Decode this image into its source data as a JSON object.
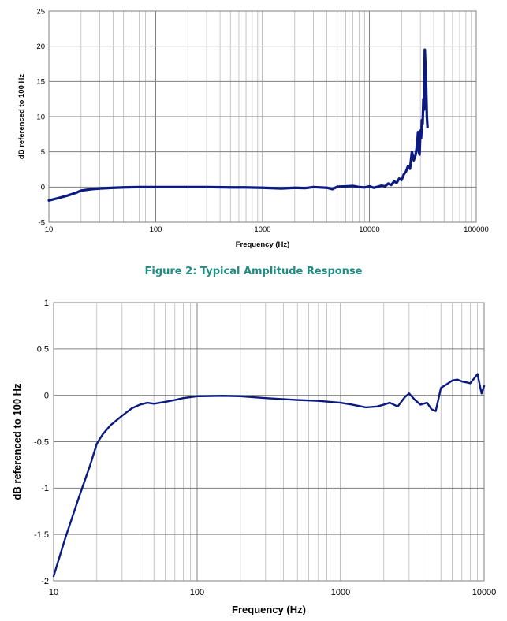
{
  "caption": "Figure 2:  Typical Amplitude Response",
  "colors": {
    "line": "#0a1a80",
    "grid_major": "#808080",
    "grid_minor": "#b0b0b0",
    "caption": "#1f8c84"
  },
  "chart_data": [
    {
      "type": "line",
      "title": "",
      "xlabel": "Frequency (Hz)",
      "ylabel": "dB referenced to 100 Hz",
      "xscale": "log",
      "xlim": [
        10,
        100000
      ],
      "ylim": [
        -5,
        25
      ],
      "x_ticks": [
        "10",
        "100",
        "1000",
        "10000",
        "100000"
      ],
      "y_ticks": [
        "25",
        "20",
        "15",
        "10",
        "5",
        "0",
        "-5"
      ],
      "grid": true,
      "legend": "none",
      "series": [
        {
          "x": [
            10,
            12,
            15,
            18,
            20,
            25,
            30,
            40,
            50,
            70,
            100,
            200,
            300,
            500,
            700,
            1000,
            1500,
            2000,
            2500,
            3000,
            4000,
            4500,
            5000,
            6000,
            7000,
            8000,
            9000,
            10000,
            11000,
            12000,
            13000,
            14000,
            15000,
            16000,
            17000,
            18000,
            19000,
            20000,
            21000,
            22000,
            23000,
            24000,
            25000,
            26000,
            27000,
            28000,
            28500,
            29000,
            29500,
            30000,
            30500,
            31000,
            31500,
            32000,
            32500,
            33000,
            33500,
            34000,
            34500,
            35000
          ],
          "y": [
            -1.9,
            -1.6,
            -1.2,
            -0.8,
            -0.5,
            -0.3,
            -0.2,
            -0.1,
            -0.05,
            0,
            0,
            0,
            0,
            -0.05,
            -0.05,
            -0.1,
            -0.2,
            -0.1,
            -0.15,
            0,
            -0.1,
            -0.3,
            0.05,
            0.1,
            0.15,
            0,
            -0.05,
            0.1,
            -0.1,
            0.05,
            0.2,
            0.1,
            0.5,
            0.3,
            0.8,
            0.6,
            1.2,
            1.0,
            1.8,
            2.2,
            3.0,
            2.6,
            5.0,
            3.8,
            4.5,
            6.0,
            7.8,
            5.0,
            4.6,
            8.0,
            7.0,
            9.5,
            9.0,
            12.5,
            11.0,
            19.5,
            17.0,
            14.0,
            10.0,
            8.5
          ]
        }
      ]
    },
    {
      "type": "line",
      "title": "",
      "xlabel": "Frequency (Hz)",
      "ylabel": "dB referenced to 100 Hz",
      "xscale": "log",
      "xlim": [
        10,
        10000
      ],
      "ylim": [
        -2,
        1
      ],
      "x_ticks": [
        "10",
        "100",
        "1000",
        "10000"
      ],
      "y_ticks": [
        "1",
        "0.5",
        "0",
        "-0.5",
        "-1",
        "-1.5",
        "-2"
      ],
      "grid": true,
      "legend": "none",
      "series": [
        {
          "x": [
            10,
            12,
            15,
            18,
            20,
            22,
            25,
            30,
            35,
            40,
            45,
            50,
            60,
            70,
            80,
            100,
            150,
            200,
            300,
            500,
            700,
            1000,
            1200,
            1500,
            1800,
            2000,
            2200,
            2500,
            2800,
            3000,
            3300,
            3600,
            4000,
            4300,
            4600,
            5000,
            5500,
            6000,
            6500,
            7000,
            7500,
            8000,
            8500,
            9000,
            9300,
            9600,
            10000
          ],
          "y": [
            -1.95,
            -1.55,
            -1.1,
            -0.75,
            -0.52,
            -0.42,
            -0.32,
            -0.22,
            -0.14,
            -0.1,
            -0.08,
            -0.09,
            -0.07,
            -0.05,
            -0.03,
            -0.01,
            -0.005,
            -0.01,
            -0.03,
            -0.05,
            -0.06,
            -0.08,
            -0.1,
            -0.13,
            -0.12,
            -0.1,
            -0.08,
            -0.12,
            -0.02,
            0.02,
            -0.05,
            -0.1,
            -0.08,
            -0.15,
            -0.17,
            0.08,
            0.12,
            0.16,
            0.17,
            0.15,
            0.14,
            0.13,
            0.18,
            0.23,
            0.12,
            0.02,
            0.1
          ]
        }
      ]
    }
  ]
}
